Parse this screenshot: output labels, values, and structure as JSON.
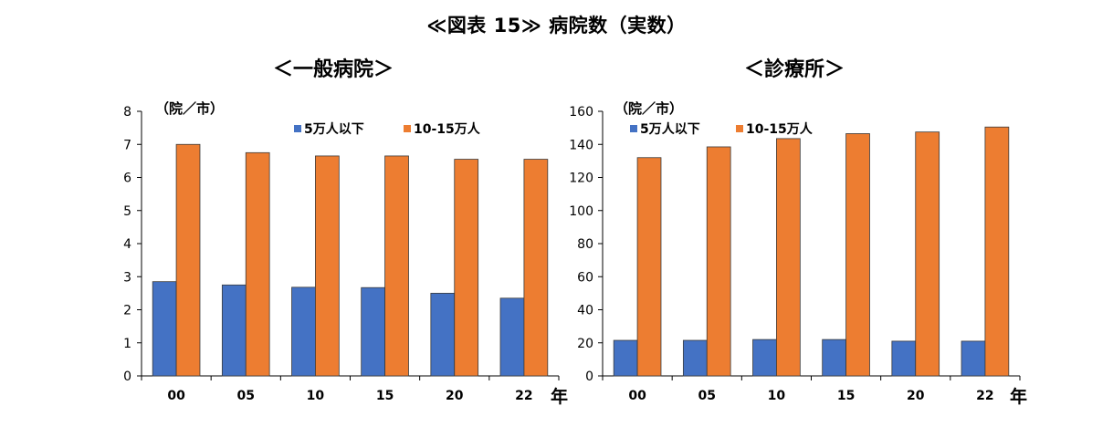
{
  "figure_title": "≪図表 15≫ 病院数（実数）",
  "colors": {
    "small_city": "#4472C4",
    "mid_city": "#ED7D31"
  },
  "chart_data": [
    {
      "type": "bar",
      "title": "＜一般病院＞",
      "unit_label": "（院／市）",
      "x_suffix": "年",
      "categories": [
        "00",
        "05",
        "10",
        "15",
        "20",
        "22"
      ],
      "ylim": [
        0,
        8
      ],
      "yticks": [
        0,
        1,
        2,
        3,
        4,
        5,
        6,
        7,
        8
      ],
      "legend_position": "top-center",
      "grid": false,
      "series": [
        {
          "name": "5万人以下",
          "values": [
            2.85,
            2.75,
            2.68,
            2.67,
            2.5,
            2.35
          ]
        },
        {
          "name": "10-15万人",
          "values": [
            7.0,
            6.75,
            6.65,
            6.65,
            6.55,
            6.55
          ]
        }
      ]
    },
    {
      "type": "bar",
      "title": "＜診療所＞",
      "unit_label": "（院／市）",
      "x_suffix": "年",
      "categories": [
        "00",
        "05",
        "10",
        "15",
        "20",
        "22"
      ],
      "ylim": [
        0,
        160
      ],
      "yticks": [
        0,
        20,
        40,
        60,
        80,
        100,
        120,
        140,
        160
      ],
      "legend_position": "top-left",
      "grid": false,
      "series": [
        {
          "name": "5万人以下",
          "values": [
            21.5,
            21.5,
            22.0,
            22.0,
            21.0,
            21.0
          ]
        },
        {
          "name": "10-15万人",
          "values": [
            132,
            138.5,
            143.5,
            146.5,
            147.5,
            150.5
          ]
        }
      ]
    }
  ]
}
